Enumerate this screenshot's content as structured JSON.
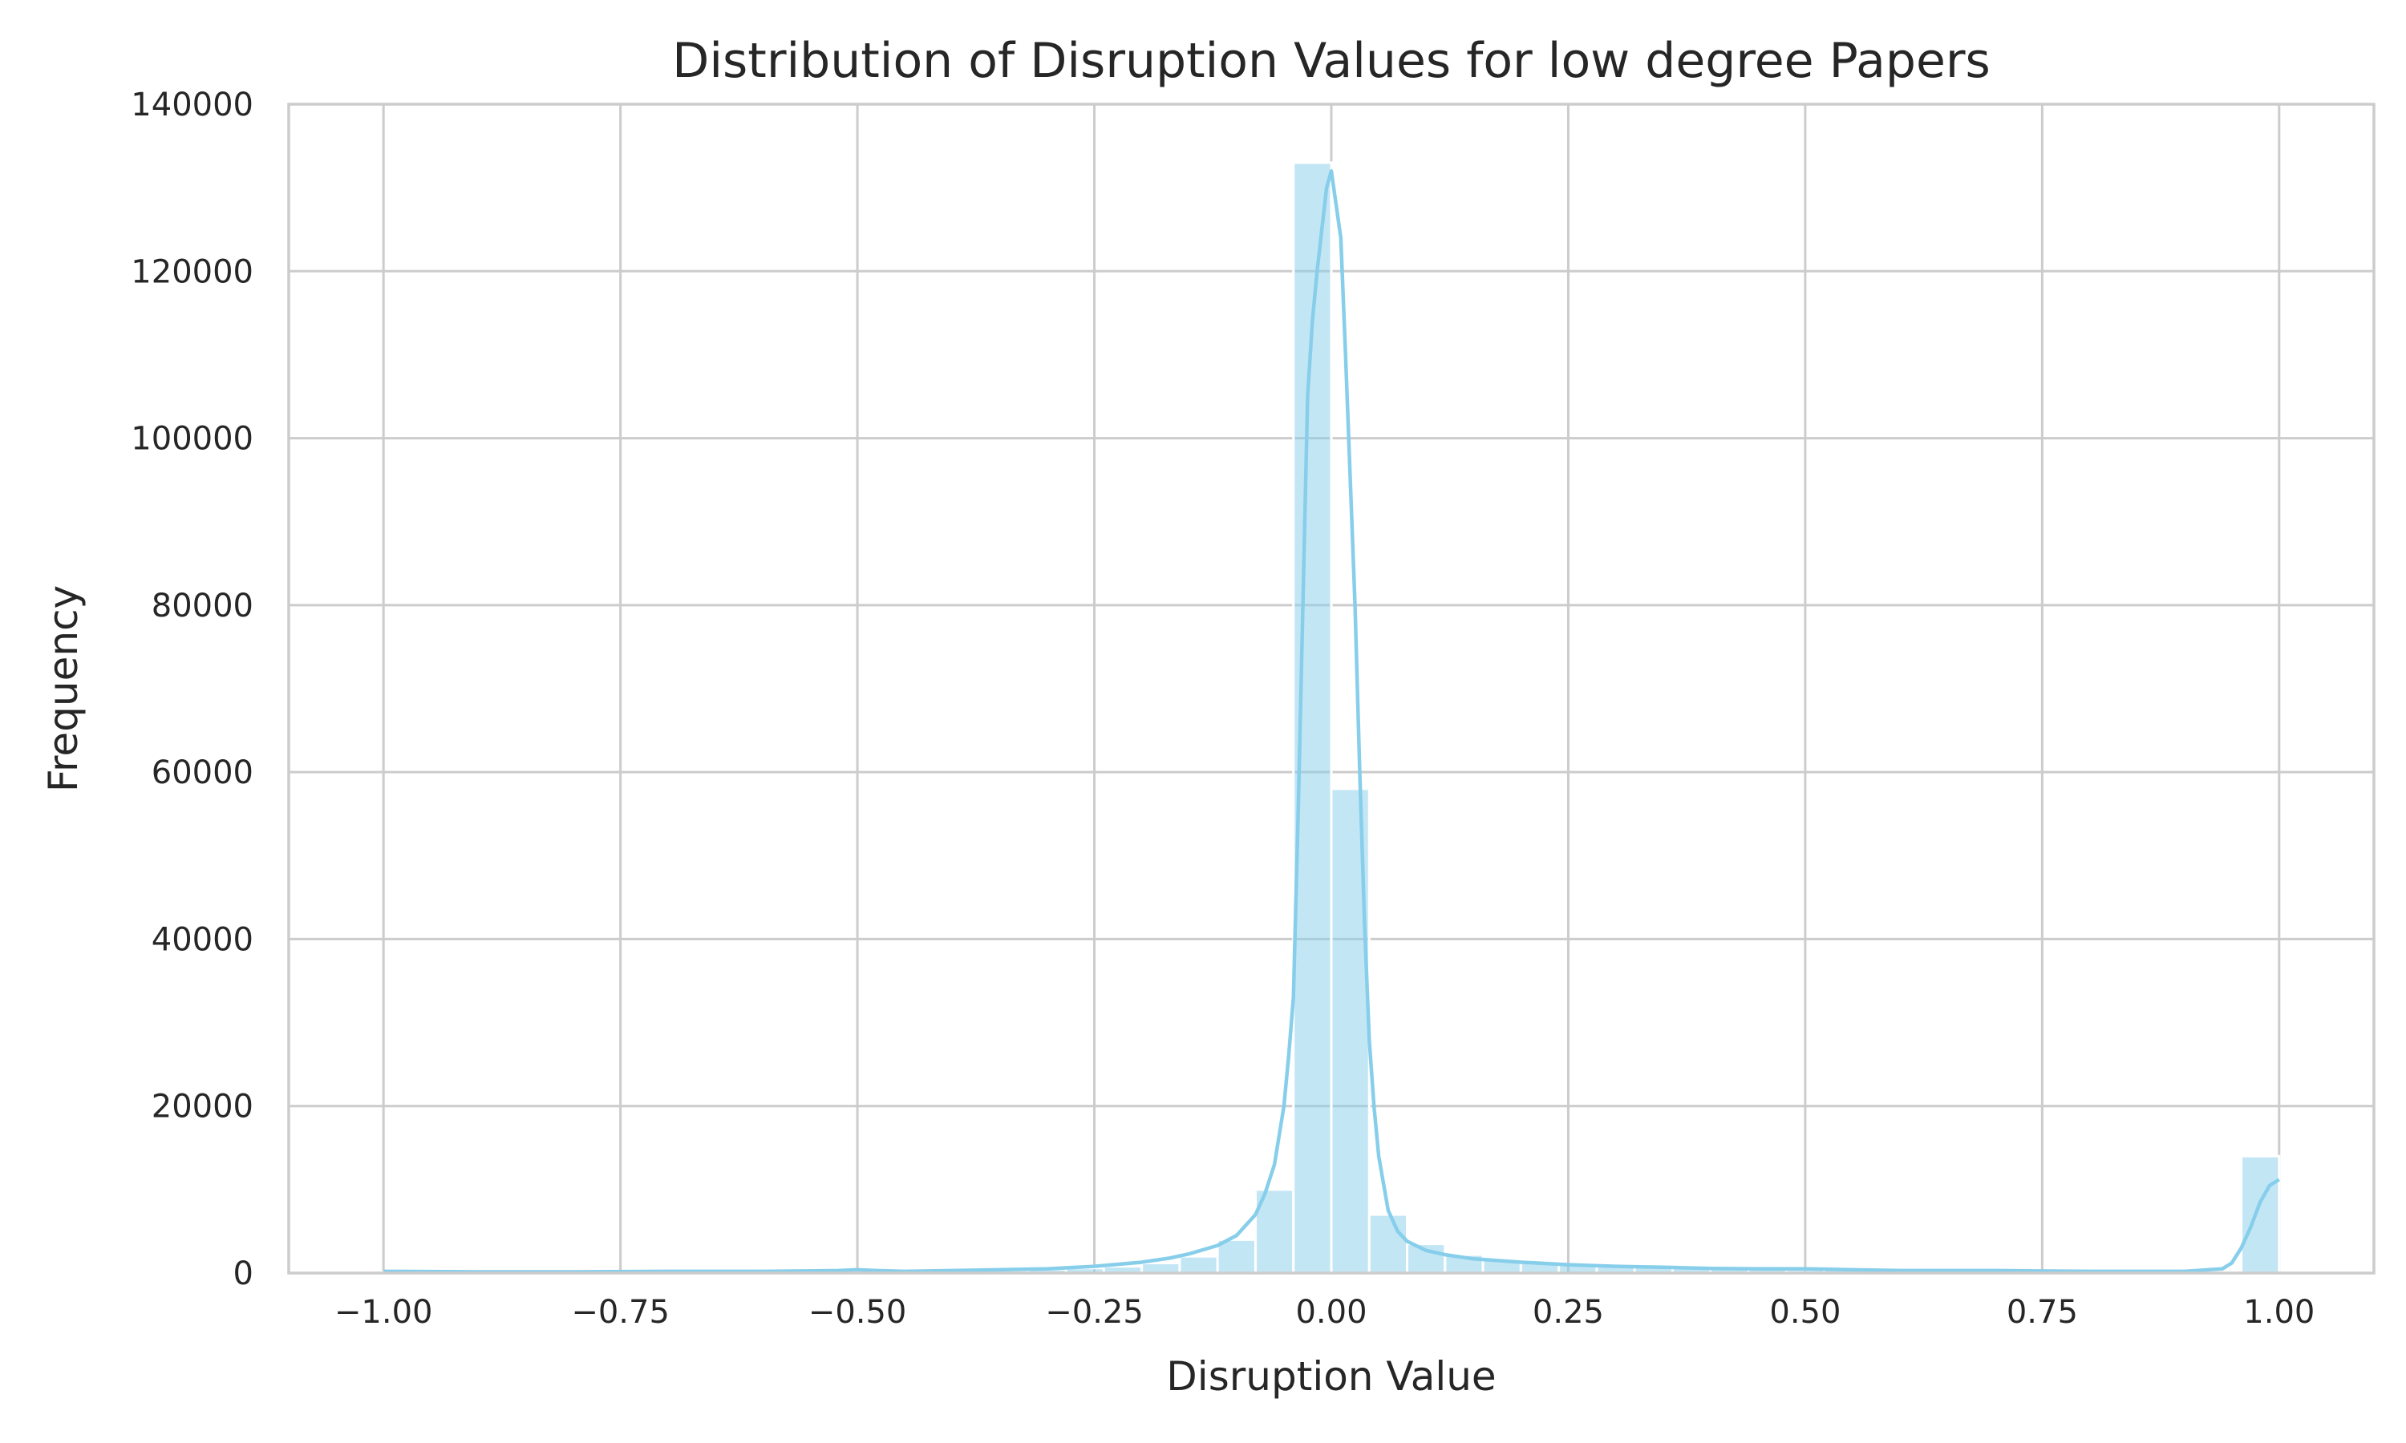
{
  "chart_data": {
    "type": "histogram",
    "title": "Distribution of Disruption Values for low degree Papers",
    "xlabel": "Disruption Value",
    "ylabel": "Frequency",
    "xlim": [
      -1.1,
      1.1
    ],
    "ylim": [
      0,
      140000
    ],
    "x_ticks": [
      -1.0,
      -0.75,
      -0.5,
      -0.25,
      0.0,
      0.25,
      0.5,
      0.75,
      1.0
    ],
    "x_tick_labels": [
      "−1.00",
      "−0.75",
      "−0.50",
      "−0.25",
      "0.00",
      "0.25",
      "0.50",
      "0.75",
      "1.00"
    ],
    "y_ticks": [
      0,
      20000,
      40000,
      60000,
      80000,
      100000,
      120000,
      140000
    ],
    "y_tick_labels": [
      "0",
      "20000",
      "40000",
      "60000",
      "80000",
      "100000",
      "120000",
      "140000"
    ],
    "grid": true,
    "color": "#87ceeb",
    "bin_edges": [
      -1.0,
      -0.96,
      -0.92,
      -0.88,
      -0.84,
      -0.8,
      -0.76,
      -0.72,
      -0.68,
      -0.64,
      -0.6,
      -0.56,
      -0.52,
      -0.48,
      -0.44,
      -0.4,
      -0.36,
      -0.32,
      -0.28,
      -0.24,
      -0.2,
      -0.16,
      -0.12,
      -0.08,
      -0.04,
      0.0,
      0.04,
      0.08,
      0.12,
      0.16,
      0.2,
      0.24,
      0.28,
      0.32,
      0.36,
      0.4,
      0.44,
      0.48,
      0.52,
      0.56,
      0.6,
      0.64,
      0.68,
      0.72,
      0.76,
      0.8,
      0.84,
      0.88,
      0.92,
      0.96,
      1.0
    ],
    "counts": [
      100,
      80,
      80,
      80,
      80,
      80,
      80,
      100,
      100,
      100,
      100,
      100,
      150,
      300,
      200,
      250,
      350,
      450,
      600,
      800,
      1200,
      2000,
      4000,
      10000,
      133000,
      58000,
      7000,
      3500,
      2200,
      1600,
      1200,
      1000,
      800,
      700,
      600,
      500,
      450,
      400,
      600,
      350,
      300,
      250,
      200,
      180,
      150,
      120,
      100,
      100,
      150,
      14000
    ],
    "kde": {
      "x": [
        -1.0,
        -0.9,
        -0.8,
        -0.7,
        -0.6,
        -0.52,
        -0.5,
        -0.48,
        -0.45,
        -0.4,
        -0.35,
        -0.3,
        -0.25,
        -0.2,
        -0.17,
        -0.15,
        -0.12,
        -0.1,
        -0.08,
        -0.07,
        -0.06,
        -0.05,
        -0.045,
        -0.04,
        -0.035,
        -0.03,
        -0.025,
        -0.02,
        -0.015,
        -0.01,
        -0.005,
        0.0,
        0.005,
        0.01,
        0.015,
        0.02,
        0.025,
        0.03,
        0.035,
        0.04,
        0.045,
        0.05,
        0.06,
        0.07,
        0.08,
        0.1,
        0.12,
        0.15,
        0.2,
        0.25,
        0.3,
        0.35,
        0.4,
        0.45,
        0.5,
        0.55,
        0.6,
        0.7,
        0.8,
        0.9,
        0.94,
        0.95,
        0.96,
        0.97,
        0.98,
        0.99,
        1.0
      ],
      "y": [
        200,
        150,
        150,
        200,
        200,
        300,
        400,
        300,
        200,
        300,
        400,
        500,
        800,
        1300,
        1800,
        2300,
        3300,
        4500,
        7000,
        9500,
        13000,
        20000,
        26000,
        33000,
        55000,
        80000,
        105000,
        114000,
        120000,
        125000,
        130000,
        132000,
        128000,
        124000,
        110000,
        95000,
        80000,
        60000,
        42000,
        28000,
        20000,
        14000,
        7500,
        5000,
        3800,
        2700,
        2200,
        1700,
        1300,
        1000,
        800,
        700,
        550,
        500,
        500,
        400,
        300,
        300,
        200,
        200,
        500,
        1200,
        3000,
        5500,
        8500,
        10500,
        11200
      ]
    }
  }
}
